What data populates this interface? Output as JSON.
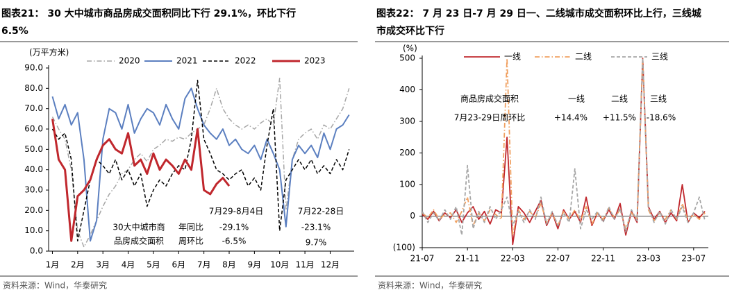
{
  "chart_data": [
    {
      "type": "line",
      "title": [
        "图表21：  30 大中城市商品房成交面积同比下行 29.1%，环比下行",
        "6.5%"
      ],
      "ylabel": "(万平方米)",
      "ylim": [
        0,
        90
      ],
      "yticks": [
        {
          "value": 0,
          "label": "0.0"
        },
        {
          "value": 10,
          "label": "10.0"
        },
        {
          "value": 20,
          "label": "20.0"
        },
        {
          "value": 30,
          "label": "30.0"
        },
        {
          "value": 40,
          "label": "40.0"
        },
        {
          "value": 50,
          "label": "50.0"
        },
        {
          "value": 60,
          "label": "60.0"
        },
        {
          "value": 70,
          "label": "70.0"
        },
        {
          "value": 80,
          "label": "80.0"
        },
        {
          "value": 90,
          "label": "90.0"
        }
      ],
      "xlim": [
        0.85,
        12.95
      ],
      "xticks": [
        {
          "value": 1,
          "label": "1月"
        },
        {
          "value": 2,
          "label": "2月"
        },
        {
          "value": 3,
          "label": "3月"
        },
        {
          "value": 4,
          "label": "4月"
        },
        {
          "value": 5,
          "label": "5月"
        },
        {
          "value": 6,
          "label": "6月"
        },
        {
          "value": 7,
          "label": "7月"
        },
        {
          "value": 8,
          "label": "8月"
        },
        {
          "value": 9,
          "label": "9月"
        },
        {
          "value": 10,
          "label": "10月"
        },
        {
          "value": 11,
          "label": "11月"
        },
        {
          "value": 12,
          "label": "12月"
        }
      ],
      "x": [
        1,
        1.25,
        1.5,
        1.75,
        2,
        2.25,
        2.5,
        2.75,
        3,
        3.25,
        3.5,
        3.75,
        4,
        4.25,
        4.5,
        4.75,
        5,
        5.25,
        5.5,
        5.75,
        6,
        6.25,
        6.5,
        6.75,
        7,
        7.25,
        7.5,
        7.75,
        8,
        8.25,
        8.5,
        8.75,
        9,
        9.25,
        9.5,
        9.75,
        10,
        10.25,
        10.5,
        10.75,
        11,
        11.25,
        11.5,
        11.75,
        12,
        12.25,
        12.5,
        12.75
      ],
      "series": [
        {
          "name": "2020",
          "color": "#a6a6a6",
          "style": "dash-dot",
          "linewidth": 1.5,
          "values": [
            66,
            60,
            55,
            40,
            10,
            2,
            8,
            15,
            22,
            28,
            32,
            38,
            40,
            45,
            48,
            44,
            50,
            52,
            55,
            54,
            56,
            55,
            58,
            60,
            62,
            70,
            80,
            70,
            65,
            62,
            60,
            62,
            60,
            63,
            65,
            62,
            85,
            20,
            45,
            55,
            58,
            60,
            55,
            62,
            60,
            65,
            70,
            80
          ]
        },
        {
          "name": "2021",
          "color": "#5b7fc0",
          "style": "solid",
          "linewidth": 2,
          "values": [
            76,
            65,
            72,
            62,
            68,
            45,
            5,
            15,
            55,
            70,
            68,
            60,
            72,
            58,
            65,
            70,
            68,
            62,
            72,
            65,
            60,
            75,
            80,
            70,
            62,
            58,
            55,
            60,
            52,
            55,
            50,
            48,
            52,
            45,
            55,
            48,
            40,
            12,
            45,
            52,
            48,
            52,
            46,
            58,
            50,
            60,
            62,
            67
          ]
        },
        {
          "name": "2022",
          "color": "#000000",
          "style": "dash",
          "linewidth": 1.5,
          "values": [
            60,
            55,
            58,
            45,
            5,
            20,
            35,
            45,
            42,
            38,
            45,
            35,
            40,
            32,
            38,
            22,
            30,
            35,
            32,
            38,
            42,
            40,
            55,
            84,
            55,
            48,
            40,
            38,
            35,
            38,
            40,
            32,
            36,
            30,
            52,
            70,
            10,
            35,
            40,
            45,
            40,
            45,
            38,
            42,
            38,
            45,
            40,
            50
          ]
        },
        {
          "name": "2023",
          "color": "#c0272d",
          "style": "solid",
          "linewidth": 3,
          "values": [
            65,
            45,
            40,
            5,
            27,
            30,
            35,
            45,
            52,
            55,
            50,
            48,
            58,
            42,
            45,
            38,
            48,
            40,
            45,
            42,
            38,
            45,
            40,
            60,
            30,
            28,
            33,
            36,
            32,
            null,
            null,
            null,
            null,
            null,
            null,
            null,
            null,
            null,
            null,
            null,
            null,
            null,
            null,
            null,
            null,
            null,
            null,
            null
          ]
        }
      ],
      "annotations": [
        "7月29-8月4日",
        "7月22-28日",
        "30大中城市商",
        "品房成交面积",
        "年同比",
        "周环比",
        "-29.1%",
        "-6.5%",
        "-23.1%",
        "9.7%"
      ],
      "source": "资料来源：Wind，华泰研究"
    },
    {
      "type": "line",
      "title": [
        "图表22：  7 月 23 日-7 月 29 日一、二线城市成交面积环比上行，三线城",
        "市成交环比下行"
      ],
      "ylabel": "(%)",
      "ylim": [
        -100,
        500
      ],
      "yticks": [
        {
          "value": -100,
          "label": "(100)"
        },
        0,
        100,
        200,
        300,
        400,
        500
      ],
      "xlim": [
        0,
        25.3
      ],
      "xticks": [
        {
          "value": 0,
          "label": "21-07"
        },
        {
          "value": 4,
          "label": "21-11"
        },
        {
          "value": 8,
          "label": "22-03"
        },
        {
          "value": 12,
          "label": "22-07"
        },
        {
          "value": 16,
          "label": "22-11"
        },
        {
          "value": 20,
          "label": "23-03"
        },
        {
          "value": 24,
          "label": "23-07"
        }
      ],
      "x": [
        0,
        0.5,
        1,
        1.5,
        2,
        2.5,
        3,
        3.5,
        4,
        4.5,
        5,
        5.5,
        6,
        6.5,
        7,
        7.5,
        8,
        8.5,
        9,
        9.5,
        10,
        10.5,
        11,
        11.5,
        12,
        12.5,
        13,
        13.5,
        14,
        14.5,
        15,
        15.5,
        16,
        16.5,
        17,
        17.5,
        18,
        18.5,
        19,
        19.5,
        20,
        20.5,
        21,
        21.5,
        22,
        22.5,
        23,
        23.5,
        24,
        24.5,
        25
      ],
      "series": [
        {
          "name": "一线",
          "color": "#c0272d",
          "style": "solid",
          "linewidth": 1.8,
          "values": [
            5,
            -10,
            15,
            -15,
            10,
            -5,
            20,
            -20,
            10,
            30,
            -10,
            15,
            -25,
            20,
            10,
            250,
            -90,
            30,
            10,
            -20,
            15,
            50,
            -30,
            10,
            -40,
            20,
            -10,
            15,
            -20,
            60,
            -30,
            10,
            -15,
            20,
            -10,
            40,
            -60,
            15,
            -20,
            500,
            30,
            -10,
            15,
            -20,
            10,
            -15,
            100,
            -20,
            10,
            -5,
            15
          ]
        },
        {
          "name": "二线",
          "color": "#f0a060",
          "style": "dash-dot",
          "linewidth": 1.8,
          "values": [
            10,
            -5,
            20,
            -10,
            5,
            10,
            -20,
            15,
            60,
            -30,
            10,
            -15,
            20,
            5,
            -10,
            500,
            -60,
            20,
            -10,
            15,
            -5,
            40,
            -20,
            10,
            -30,
            15,
            -10,
            20,
            -15,
            30,
            -25,
            10,
            -10,
            25,
            -5,
            20,
            -40,
            10,
            -10,
            500,
            20,
            -15,
            10,
            -10,
            20,
            -10,
            40,
            -15,
            5,
            -10,
            10
          ]
        },
        {
          "name": "三线",
          "color": "#a6a6a6",
          "style": "dash",
          "linewidth": 1.8,
          "values": [
            15,
            -20,
            10,
            -15,
            20,
            -10,
            30,
            -60,
            160,
            -40,
            15,
            -20,
            30,
            -10,
            20,
            60,
            -30,
            15,
            -20,
            20,
            -10,
            60,
            -25,
            15,
            -30,
            10,
            -20,
            150,
            -40,
            20,
            -10,
            15,
            -20,
            30,
            -10,
            25,
            -50,
            20,
            -15,
            500,
            30,
            -20,
            15,
            -25,
            20,
            -10,
            30,
            -20,
            10,
            60,
            -15
          ]
        }
      ],
      "annotations": [
        "商品房成交面积",
        "7月23-29日周环比",
        "一线",
        "二线",
        "三线",
        "+14.4%",
        "+11.5%",
        "-18.6%"
      ],
      "source": "资料来源：Wind，华泰研究"
    }
  ]
}
